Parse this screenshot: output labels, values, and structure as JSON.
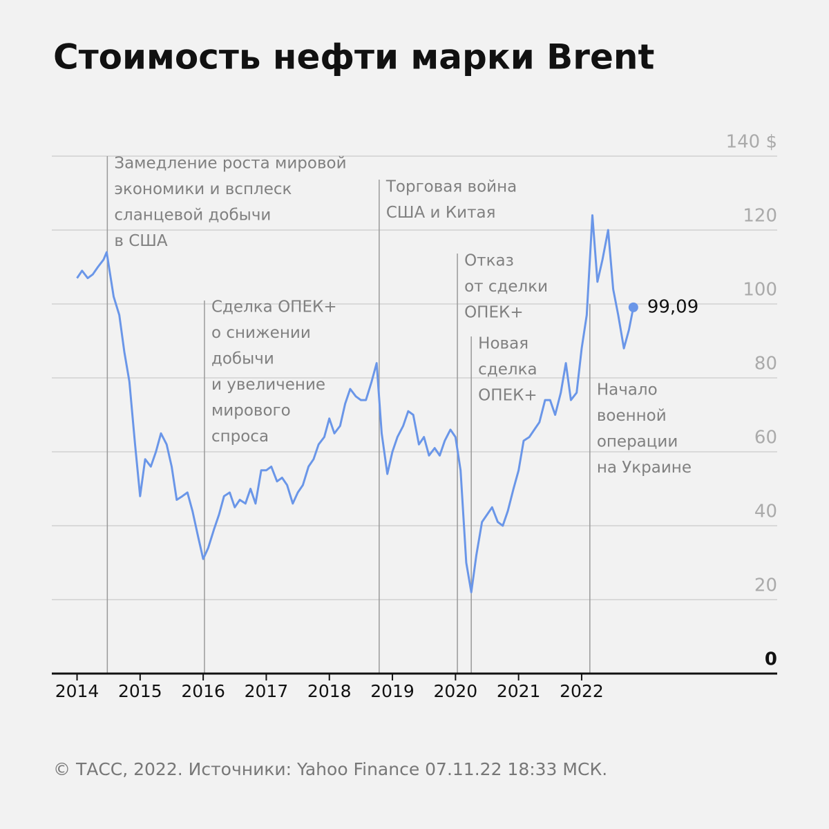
{
  "chart_data": {
    "type": "line",
    "title": "Стоимость нефти марки Brent",
    "footer": "© ТАСС, 2022. Источники: Yahoo Finance 07.11.22 18:33 МСК.",
    "xlim": [
      2013.6,
      2025.1
    ],
    "xticks": [
      2014,
      2015,
      2016,
      2017,
      2018,
      2019,
      2020,
      2021,
      2022
    ],
    "ylim": [
      0,
      140
    ],
    "yticks": [
      0,
      20,
      40,
      60,
      80,
      100,
      120,
      {
        "value": 140,
        "label": "140 $"
      }
    ],
    "grid": true,
    "series": [
      {
        "name": "Brent",
        "color": "#6a96e8",
        "x": [
          2014,
          2014.08,
          2014.17,
          2014.25,
          2014.33,
          2014.42,
          2014.47,
          2014.58,
          2014.67,
          2014.75,
          2014.83,
          2014.92,
          2015,
          2015.08,
          2015.17,
          2015.25,
          2015.33,
          2015.42,
          2015.5,
          2015.58,
          2015.67,
          2015.75,
          2015.83,
          2015.92,
          2016,
          2016.08,
          2016.17,
          2016.25,
          2016.33,
          2016.42,
          2016.5,
          2016.58,
          2016.67,
          2016.75,
          2016.83,
          2016.92,
          2017,
          2017.08,
          2017.17,
          2017.25,
          2017.33,
          2017.42,
          2017.5,
          2017.58,
          2017.67,
          2017.75,
          2017.83,
          2017.92,
          2018,
          2018.08,
          2018.17,
          2018.25,
          2018.33,
          2018.42,
          2018.5,
          2018.58,
          2018.67,
          2018.75,
          2018.83,
          2018.92,
          2019,
          2019.08,
          2019.17,
          2019.25,
          2019.33,
          2019.42,
          2019.5,
          2019.58,
          2019.67,
          2019.75,
          2019.83,
          2019.92,
          2020,
          2020.08,
          2020.17,
          2020.25,
          2020.33,
          2020.42,
          2020.5,
          2020.58,
          2020.67,
          2020.75,
          2020.83,
          2020.92,
          2021,
          2021.08,
          2021.17,
          2021.25,
          2021.33,
          2021.42,
          2021.5,
          2021.58,
          2021.67,
          2021.75,
          2021.83,
          2021.92,
          2022,
          2022.08,
          2022.17,
          2022.25,
          2022.33,
          2022.42,
          2022.5,
          2022.58,
          2022.67,
          2022.75,
          2022.82
        ],
        "values": [
          107,
          109,
          107,
          108,
          110,
          112,
          114,
          102,
          97,
          87,
          79,
          62,
          48,
          58,
          56,
          60,
          65,
          62,
          56,
          47,
          48,
          49,
          44,
          37,
          31,
          34,
          39,
          43,
          48,
          49,
          45,
          47,
          46,
          50,
          46,
          55,
          55,
          56,
          52,
          53,
          51,
          46,
          49,
          51,
          56,
          58,
          62,
          64,
          69,
          65,
          67,
          73,
          77,
          75,
          74,
          74,
          79,
          84,
          65,
          54,
          60,
          64,
          67,
          71,
          70,
          62,
          64,
          59,
          61,
          59,
          63,
          66,
          64,
          55,
          30,
          22,
          32,
          41,
          43,
          45,
          41,
          40,
          44,
          50,
          55,
          63,
          64,
          66,
          68,
          74,
          74,
          70,
          76,
          84,
          74,
          76,
          88,
          97,
          124,
          106,
          112,
          120,
          104,
          97,
          88,
          93,
          99.09
        ],
        "last_label": "99,09"
      }
    ],
    "annotations": [
      {
        "x": 2014.48,
        "text": [
          "Замедление роста мировой",
          "экономики и всплеск",
          "сланцевой добычи",
          "в США"
        ]
      },
      {
        "x": 2016.02,
        "text": [
          "Сделка ОПЕК+",
          "о снижении",
          "добычи",
          "и увеличение",
          "мирового",
          "спроса"
        ]
      },
      {
        "x": 2018.79,
        "text": [
          "Торговая война",
          "США и Китая"
        ]
      },
      {
        "x": 2020.03,
        "text": [
          "Отказ",
          "от сделки",
          "ОПЕК+"
        ]
      },
      {
        "x": 2020.25,
        "text": [
          "Новая",
          "сделка",
          "ОПЕК+"
        ]
      },
      {
        "x": 2022.13,
        "text": [
          "Начало",
          "военной",
          "операции",
          "на Украине"
        ]
      }
    ]
  }
}
